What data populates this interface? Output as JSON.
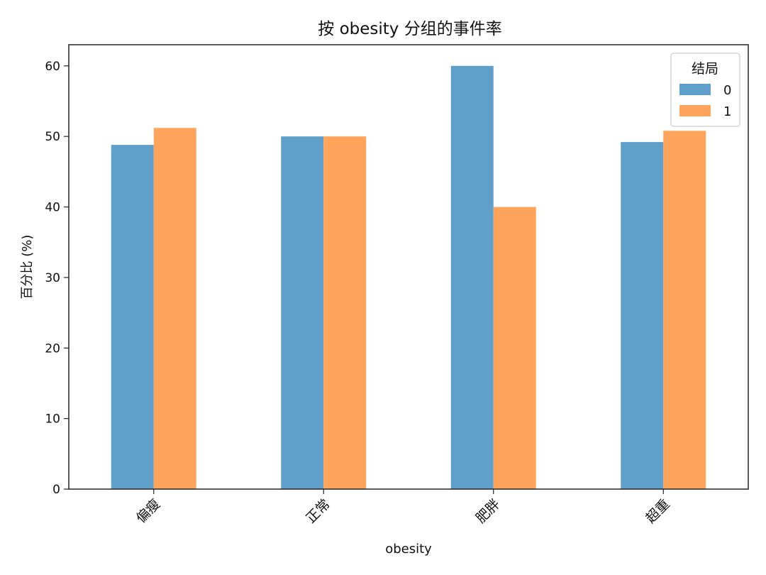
{
  "chart_data": {
    "type": "bar",
    "title": "按 obesity 分组的事件率",
    "xlabel": "obesity",
    "ylabel": "百分比 (%)",
    "categories": [
      "偏瘦",
      "正常",
      "肥胖",
      "超重"
    ],
    "series": [
      {
        "name": "0",
        "values": [
          48.8,
          50.0,
          60.0,
          49.2
        ],
        "color": "#5f9fc9"
      },
      {
        "name": "1",
        "values": [
          51.2,
          50.0,
          40.0,
          50.8
        ],
        "color": "#fea45c"
      }
    ],
    "ylim": [
      0,
      63
    ],
    "yticks": [
      0,
      10,
      20,
      30,
      40,
      50,
      60
    ],
    "legend": {
      "title": "结局",
      "position": "top-right"
    },
    "grid": false
  }
}
